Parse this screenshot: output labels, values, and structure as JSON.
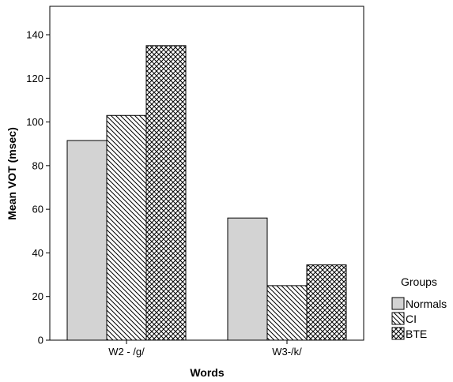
{
  "chart_data": {
    "type": "bar",
    "categories": [
      "W2 - /g/",
      "W3-/k/"
    ],
    "series": [
      {
        "name": "Normals",
        "values": [
          91.5,
          56
        ],
        "pattern": "solid"
      },
      {
        "name": "CI",
        "values": [
          103,
          25
        ],
        "pattern": "diagonal"
      },
      {
        "name": "BTE",
        "values": [
          135,
          34.5
        ],
        "pattern": "crosshatch"
      }
    ],
    "xlabel": "Words",
    "ylabel": "Mean VOT (msec)",
    "ylim": [
      0,
      140
    ],
    "yticks": [
      0,
      20,
      40,
      60,
      80,
      100,
      120,
      140
    ],
    "grid": false,
    "legend": {
      "title": "Groups",
      "placement": "right-bottom"
    },
    "colors": {
      "bar_fill": "#d3d3d3",
      "pattern_bg": "#ffffff",
      "stroke": "#000000"
    }
  }
}
